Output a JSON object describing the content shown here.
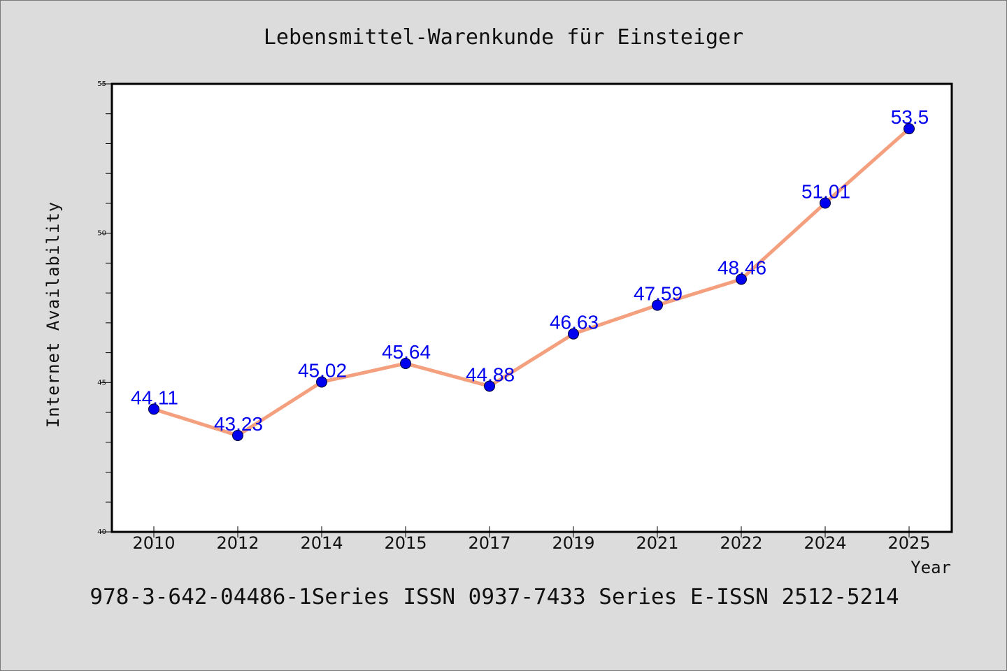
{
  "chart_data": {
    "type": "line",
    "title": "Lebensmittel-Warenkunde für Einsteiger",
    "xlabel": "Year",
    "ylabel": "Internet Availability",
    "x": [
      "2010",
      "2012",
      "2014",
      "2015",
      "2017",
      "2019",
      "2021",
      "2022",
      "2024",
      "2025"
    ],
    "series": [
      {
        "values": [
          44.11,
          43.23,
          45.02,
          45.64,
          44.88,
          46.63,
          47.59,
          48.46,
          51.01,
          53.5
        ],
        "labels": [
          "44.11",
          "43.23",
          "45.02",
          "45.64",
          "44.88",
          "46.63",
          "47.59",
          "48.46",
          "51.01",
          "53.5"
        ],
        "line_color": "#f4a07e",
        "marker_color": "#0000ee"
      }
    ],
    "ylim": [
      40,
      55
    ],
    "yticks": [
      "40",
      "45",
      "50",
      "55"
    ],
    "grid": false,
    "legend": "none"
  },
  "footer": "978-3-642-04486-1Series ISSN 0937-7433 Series E-ISSN 2512-5214",
  "colors": {
    "background": "#dcdcdc",
    "plot_background": "#ffffff",
    "line": "#f4a07e",
    "marker": "#0000ee",
    "label": "#0000ee"
  }
}
